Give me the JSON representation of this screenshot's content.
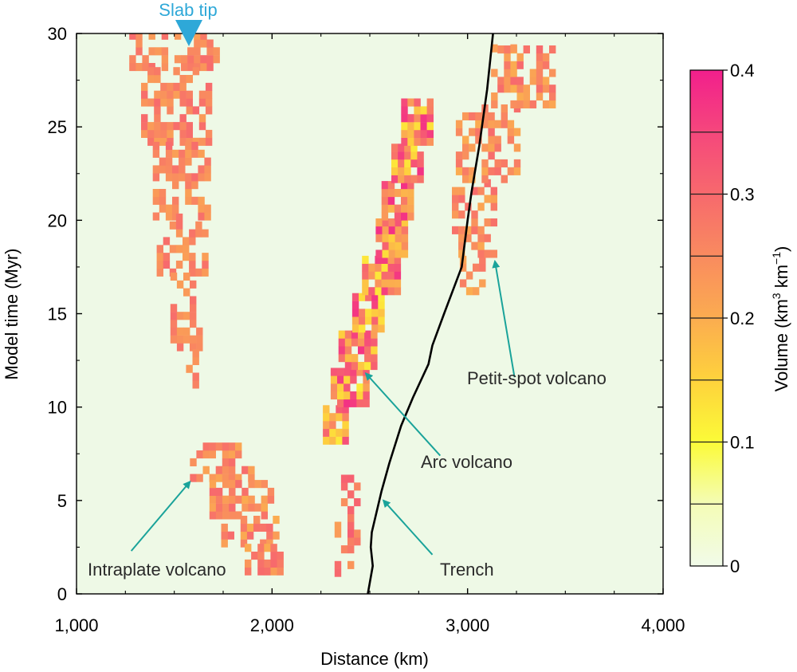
{
  "chart_data": {
    "type": "heatmap",
    "xlabel": "Distance (km)",
    "ylabel": "Model time (Myr)",
    "xlim": [
      1000,
      4000
    ],
    "ylim": [
      0,
      30
    ],
    "x_ticks": [
      1000,
      2000,
      3000,
      4000
    ],
    "x_tick_labels": [
      "1,000",
      "2,000",
      "3,000",
      "4,000"
    ],
    "y_ticks": [
      0,
      5,
      10,
      15,
      20,
      25,
      30
    ],
    "y_tick_labels": [
      "0",
      "5",
      "10",
      "15",
      "20",
      "25",
      "30"
    ],
    "cell_size_km": 33,
    "cell_size_myr": 0.42,
    "colorbar": {
      "label_prefix": "Volume (km",
      "label_sup1": "3",
      "label_mid": " km",
      "label_sup2": "−1",
      "label_suffix": ")",
      "range": [
        0,
        0.4
      ],
      "ticks": [
        0,
        0.1,
        0.2,
        0.3,
        0.4
      ],
      "tick_labels": [
        "0",
        "0.1",
        "0.2",
        "0.3",
        "0.4"
      ],
      "colors": [
        "#f1fbe9",
        "#f4fcb6",
        "#fbfb38",
        "#fed23c",
        "#fbac50",
        "#f98b5f",
        "#f7696d",
        "#f5477c",
        "#f21f8c"
      ]
    },
    "background_color": "#eef9e6",
    "trench": {
      "name": "Trench",
      "points": [
        [
          2490,
          0
        ],
        [
          2515,
          1.5
        ],
        [
          2505,
          2.5
        ],
        [
          2510,
          3.3
        ],
        [
          2560,
          5.5
        ],
        [
          2600,
          7
        ],
        [
          2660,
          9
        ],
        [
          2720,
          10.5
        ],
        [
          2800,
          12.3
        ],
        [
          2820,
          13.3
        ],
        [
          2880,
          15
        ],
        [
          2970,
          17.5
        ],
        [
          3000,
          20
        ],
        [
          3020,
          21.5
        ],
        [
          3060,
          24
        ],
        [
          3100,
          27
        ],
        [
          3130,
          30
        ]
      ]
    },
    "regions": [
      {
        "name": "Intraplate volcano (upper)",
        "value_range": [
          0.22,
          0.3
        ],
        "bands": [
          [
            28,
            30,
            1270,
            1710
          ],
          [
            24,
            28,
            1330,
            1690
          ],
          [
            20,
            24,
            1390,
            1680
          ],
          [
            17,
            20,
            1410,
            1660
          ],
          [
            13,
            17,
            1480,
            1640
          ],
          [
            11,
            13,
            1560,
            1620
          ]
        ],
        "fill": 0.55
      },
      {
        "name": "Intraplate volcano (lower)",
        "value_range": [
          0.2,
          0.3
        ],
        "bands": [
          [
            6,
            8,
            1580,
            1910
          ],
          [
            4,
            6,
            1680,
            1990
          ],
          [
            2.5,
            4,
            1740,
            2030
          ],
          [
            1,
            2.5,
            1860,
            2030
          ]
        ],
        "fill": 0.6
      },
      {
        "name": "Trench-side cells",
        "value_range": [
          0.22,
          0.32
        ],
        "bands": [
          [
            0.5,
            6.5,
            2320,
            2440
          ]
        ],
        "fill": 0.35
      },
      {
        "name": "Arc volcano",
        "value_range": [
          0.12,
          0.38
        ],
        "bands": [
          [
            8,
            10,
            2260,
            2380
          ],
          [
            10,
            12,
            2300,
            2470
          ],
          [
            12,
            14,
            2340,
            2510
          ],
          [
            14,
            16,
            2410,
            2560
          ],
          [
            16,
            18,
            2460,
            2640
          ],
          [
            18,
            20,
            2530,
            2670
          ],
          [
            20,
            22,
            2560,
            2710
          ],
          [
            22,
            24,
            2610,
            2760
          ],
          [
            24,
            26.5,
            2660,
            2810
          ]
        ],
        "fill": 0.9
      },
      {
        "name": "Petit-spot volcano",
        "value_range": [
          0.2,
          0.3
        ],
        "bands": [
          [
            13,
            14,
            2860,
            2920
          ],
          [
            16,
            18,
            2960,
            3080
          ],
          [
            18,
            22,
            2920,
            3140
          ],
          [
            22,
            26,
            2940,
            3240
          ],
          [
            26,
            29,
            3120,
            3420
          ],
          [
            29,
            30,
            3120,
            3230
          ]
        ],
        "fill": 0.5
      }
    ],
    "annotations": {
      "slab_tip": "Slab tip",
      "intraplate": "Intraplate volcano",
      "arc": "Arc volcano",
      "trench": "Trench",
      "petit_spot": "Petit-spot volcano"
    },
    "slab_tip_x": 1590,
    "arrows": [
      {
        "name": "intraplate-arrow",
        "from": [
          1280,
          2.3
        ],
        "to": [
          1580,
          6.0
        ]
      },
      {
        "name": "arc-arrow",
        "from": [
          2860,
          7.4
        ],
        "to": [
          2480,
          11.8
        ]
      },
      {
        "name": "trench-arrow",
        "from": [
          2820,
          2.1
        ],
        "to": [
          2570,
          5.0
        ]
      },
      {
        "name": "petit-spot-arrow",
        "from": [
          3240,
          11.6
        ],
        "to": [
          3140,
          17.8
        ]
      }
    ],
    "colors": {
      "axis": "#000000",
      "arrow": "#1aa39a",
      "slab_tip": "#2ea8d8",
      "label": "#2a2a2a"
    }
  }
}
